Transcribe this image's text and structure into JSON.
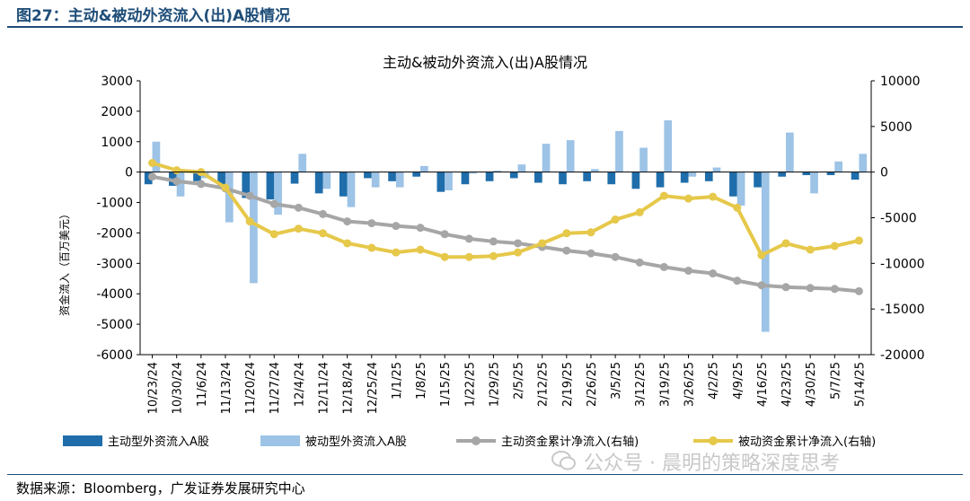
{
  "header": {
    "figure_title": "图27：主动&被动外资流入(出)A股情况"
  },
  "source": "数据来源：Bloomberg，广发证券发展研究中心",
  "watermark": "公众号 · 晨明的策略深度思考",
  "colors": {
    "active_bar": "#1f6eab",
    "passive_bar": "#9dc3e6",
    "active_cum": "#a6a6a6",
    "passive_cum": "#e6c84a",
    "header": "#1f4e79"
  },
  "chart_data": {
    "type": "bar",
    "title": "主动&被动外资流入(出)A股情况",
    "ylabel": "资金流入（百万美元）",
    "ylim": [
      -6000,
      3000
    ],
    "y_ticks": [
      3000,
      2000,
      1000,
      0,
      -1000,
      -2000,
      -3000,
      -4000,
      -5000,
      -6000
    ],
    "y2lim": [
      -20000,
      10000
    ],
    "y2_ticks": [
      10000,
      5000,
      0,
      -5000,
      -10000,
      -15000,
      -20000
    ],
    "x_labels": [
      "10/23/24",
      "10/30/24",
      "11/6/24",
      "11/13/24",
      "11/20/24",
      "11/27/24",
      "12/4/24",
      "12/11/24",
      "12/18/24",
      "12/25/24",
      "1/1/25",
      "1/8/25",
      "1/15/25",
      "1/22/25",
      "1/29/25",
      "2/5/25",
      "2/12/25",
      "2/19/25",
      "2/26/25",
      "3/5/25",
      "3/12/25",
      "3/19/25",
      "3/26/25",
      "4/2/25",
      "4/9/25",
      "4/16/25",
      "4/23/25",
      "4/30/25",
      "5/7/25",
      "5/14/25"
    ],
    "legend_position": "bottom",
    "series": [
      {
        "name": "主动型外资流入A股",
        "type": "bar",
        "axis": "left",
        "values": [
          -400,
          -450,
          -300,
          -500,
          -850,
          -900,
          -380,
          -700,
          -800,
          -200,
          -300,
          -150,
          -650,
          -400,
          -300,
          -200,
          -350,
          -400,
          -300,
          -400,
          -550,
          -500,
          -350,
          -300,
          -800,
          -500,
          -150,
          -100,
          -100,
          -250
        ]
      },
      {
        "name": "被动型外资流入A股",
        "type": "bar",
        "axis": "left",
        "values": [
          1000,
          -800,
          -200,
          -1650,
          -3650,
          -1400,
          600,
          -550,
          -1150,
          -500,
          -500,
          200,
          -600,
          -50,
          50,
          250,
          930,
          1050,
          100,
          1350,
          800,
          1700,
          -150,
          150,
          -1100,
          -5250,
          1300,
          -700,
          350,
          600
        ]
      },
      {
        "name": "主动资金累计净流入(右轴)",
        "type": "line",
        "axis": "right",
        "values": [
          -500,
          -1000,
          -1300,
          -1800,
          -2600,
          -3500,
          -3900,
          -4600,
          -5400,
          -5600,
          -5900,
          -6100,
          -6800,
          -7300,
          -7600,
          -7800,
          -8200,
          -8600,
          -8900,
          -9300,
          -9900,
          -10400,
          -10800,
          -11100,
          -11900,
          -12400,
          -12600,
          -12700,
          -12800,
          -13050
        ]
      },
      {
        "name": "被动资金累计净流入(右轴)",
        "type": "line",
        "axis": "right",
        "values": [
          1000,
          200,
          0,
          -1700,
          -5400,
          -6800,
          -6200,
          -6700,
          -7800,
          -8300,
          -8800,
          -8500,
          -9300,
          -9300,
          -9200,
          -8800,
          -7800,
          -6700,
          -6600,
          -5200,
          -4400,
          -2600,
          -2900,
          -2700,
          -3900,
          -9100,
          -7800,
          -8500,
          -8100,
          -7500
        ]
      }
    ]
  }
}
